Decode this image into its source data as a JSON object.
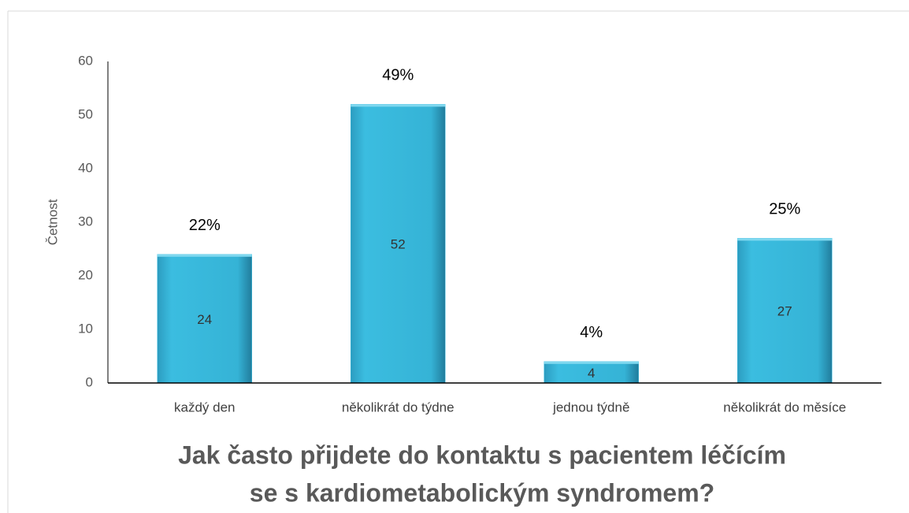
{
  "chart_data": {
    "type": "bar",
    "title": [
      "Jak často přijdete do kontaktu s pacientem léčícím",
      "se s kardiometabolickým syndromem?"
    ],
    "y_label": "Četnost",
    "categories": [
      "každý den",
      "několikrát do týdne",
      "jednou týdně",
      "několikrát do měsíce"
    ],
    "values": [
      24,
      52,
      4,
      27
    ],
    "percent_labels": [
      "22%",
      "49%",
      "4%",
      "25%"
    ],
    "color": "#3bbde0",
    "ylim": [
      0,
      60
    ],
    "yticks": [
      0,
      10,
      20,
      30,
      40,
      50,
      60
    ],
    "grid": false
  }
}
